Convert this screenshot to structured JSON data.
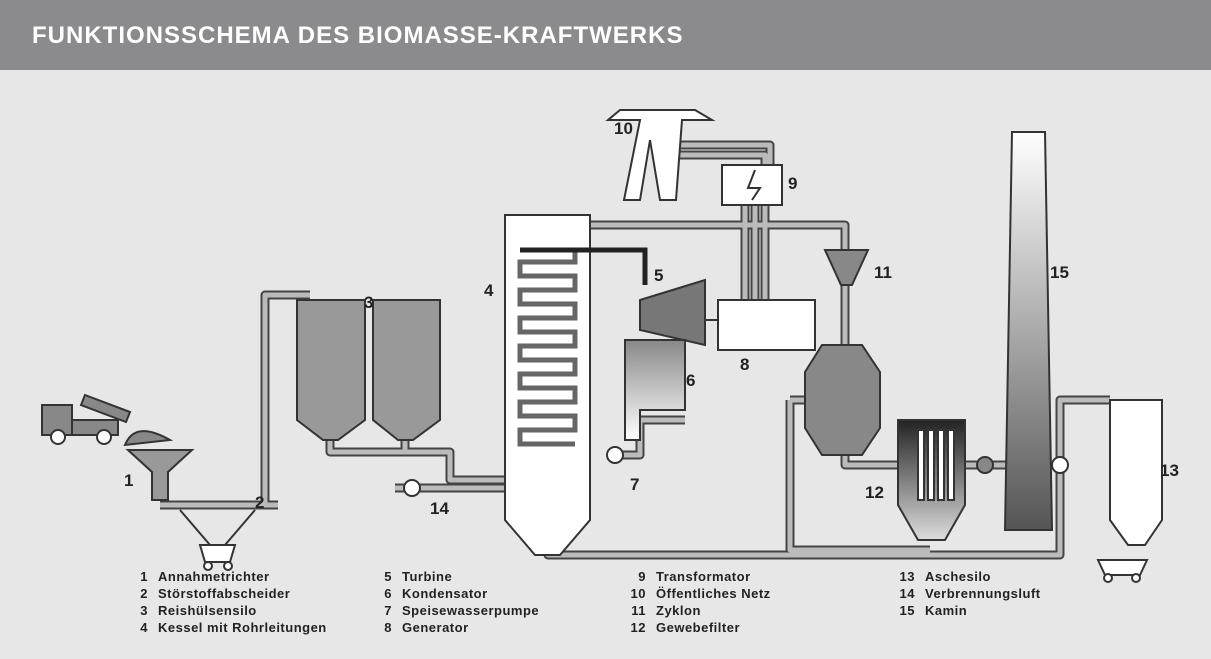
{
  "header": {
    "title": "FUNKTIONSSCHEMA DES BIOMASSE-KRAFTWERKS"
  },
  "diagram": {
    "labels": [
      "1",
      "2",
      "3",
      "4",
      "5",
      "6",
      "7",
      "8",
      "9",
      "10",
      "11",
      "12",
      "13",
      "14",
      "15"
    ]
  },
  "legend": [
    {
      "number": "1",
      "text": "Annahmetrichter"
    },
    {
      "number": "2",
      "text": "Störstoffabscheider"
    },
    {
      "number": "3",
      "text": "Reishülsensilo"
    },
    {
      "number": "4",
      "text": "Kessel mit Rohrleitungen"
    },
    {
      "number": "5",
      "text": "Turbine"
    },
    {
      "number": "6",
      "text": "Kondensator"
    },
    {
      "number": "7",
      "text": "Speisewasserpumpe"
    },
    {
      "number": "8",
      "text": "Generator"
    },
    {
      "number": "9",
      "text": "Transformator"
    },
    {
      "number": "10",
      "text": "Öffentliches Netz"
    },
    {
      "number": "11",
      "text": "Zyklon"
    },
    {
      "number": "12",
      "text": "Gewebefilter"
    },
    {
      "number": "13",
      "text": "Aschesilo"
    },
    {
      "number": "14",
      "text": "Verbrennungsluft"
    },
    {
      "number": "15",
      "text": "Kamin"
    }
  ]
}
